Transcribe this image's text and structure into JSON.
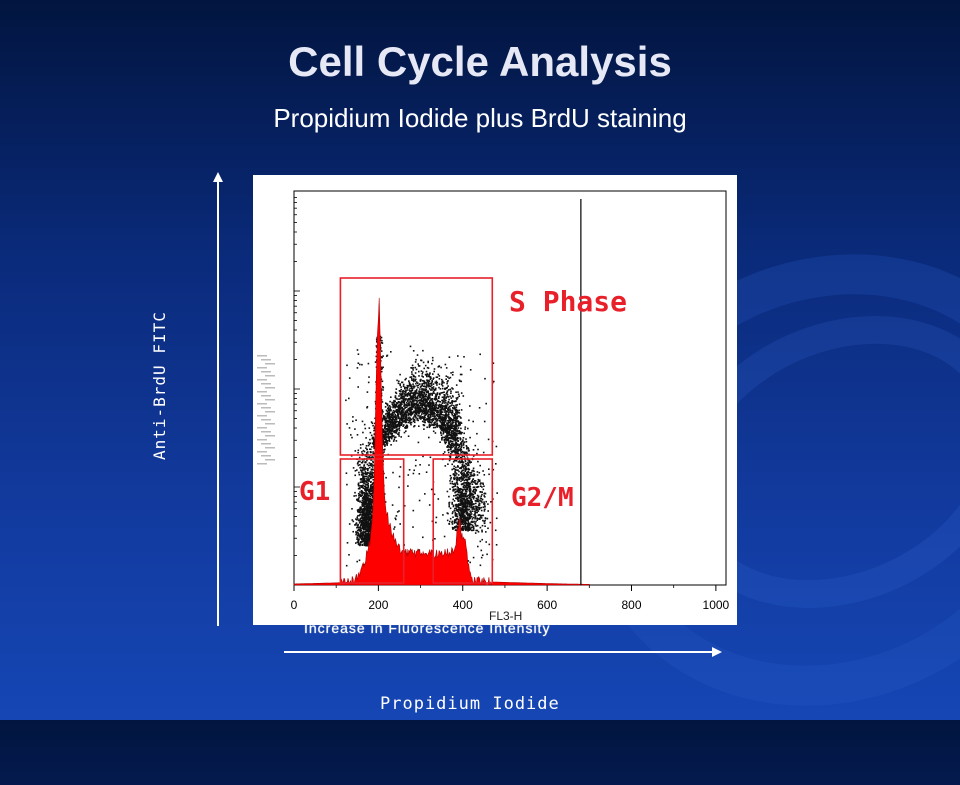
{
  "title": "Cell Cycle Analysis",
  "subtitle": "Propidium Iodide plus BrdU staining",
  "ylabel": "Anti-BrdU FITC",
  "xlabel": "Propidium Iodide",
  "colors": {
    "gate": "#e8202a",
    "histogram": "#ff0000",
    "dots": "#111111"
  },
  "chart_data": {
    "type": "scatter",
    "title": "Cell Cycle Analysis",
    "subtitle": "Propidium Iodide plus BrdU staining",
    "xlabel": "Propidium Iodide",
    "ylabel": "Anti-BrdU FITC",
    "x_axis_name": "FL3-H",
    "x_caption": "Increase in Fluorescence Intensity",
    "xlim": [
      0,
      1024
    ],
    "xticks": [
      0,
      200,
      400,
      600,
      800,
      1000
    ],
    "gates": [
      {
        "name": "S Phase",
        "x": [
          110,
          470
        ]
      },
      {
        "name": "G1",
        "x": [
          110,
          260
        ]
      },
      {
        "name": "G2/M",
        "x": [
          330,
          470
        ]
      }
    ],
    "histogram": {
      "peaks": [
        {
          "label": "G1",
          "x": 200
        },
        {
          "label": "G2/M",
          "x": 400
        }
      ]
    }
  }
}
